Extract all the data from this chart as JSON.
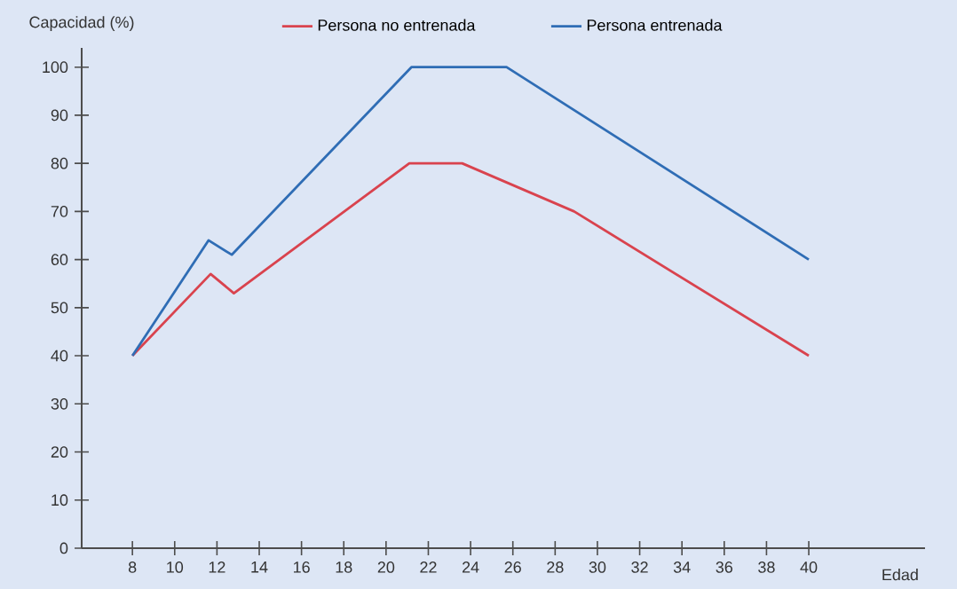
{
  "chart_data": {
    "type": "line",
    "ylabel": "Capacidad (%)",
    "xlabel": "Edad",
    "xlim": [
      5.6,
      45.5
    ],
    "ylim": [
      0,
      104
    ],
    "xticks": [
      8,
      10,
      12,
      14,
      16,
      18,
      20,
      22,
      24,
      26,
      28,
      30,
      32,
      34,
      36,
      38,
      40
    ],
    "yticks": [
      0,
      10,
      20,
      30,
      40,
      50,
      60,
      70,
      80,
      90,
      100
    ],
    "legend": "top",
    "grid": false,
    "marker": "none",
    "line_style": "solid",
    "series": [
      {
        "name": "Persona no entrenada",
        "color": "#d9434e",
        "x": [
          8,
          11.7,
          12.8,
          21.1,
          23.6,
          28.9,
          40
        ],
        "values": [
          40,
          57,
          53,
          80,
          80,
          70,
          40
        ]
      },
      {
        "name": "Persona entrenada",
        "color": "#2f6db5",
        "x": [
          8,
          11.6,
          12.7,
          21.2,
          25.7,
          40
        ],
        "values": [
          40,
          64,
          61,
          100,
          100,
          60
        ]
      }
    ]
  }
}
